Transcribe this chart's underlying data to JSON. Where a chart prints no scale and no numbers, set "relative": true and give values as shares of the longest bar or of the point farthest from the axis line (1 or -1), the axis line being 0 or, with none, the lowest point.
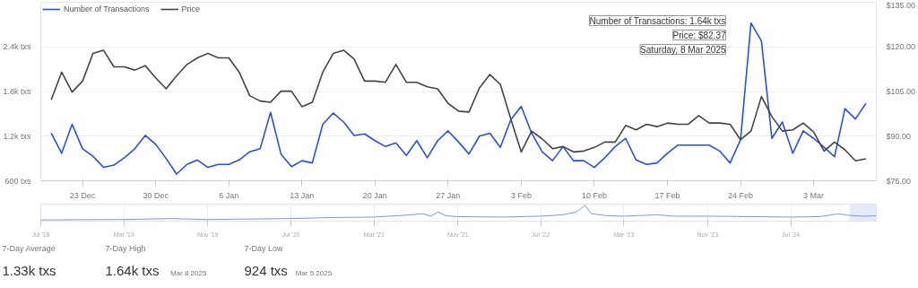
{
  "chart_data": [
    {
      "type": "line",
      "legend": "top left",
      "grid": "y",
      "marker": "none",
      "line_style": "solid",
      "x": [
        "2024-12-20",
        "2024-12-21",
        "2024-12-22",
        "2024-12-23",
        "2024-12-24",
        "2024-12-25",
        "2024-12-26",
        "2024-12-27",
        "2024-12-28",
        "2024-12-29",
        "2024-12-30",
        "2024-12-31",
        "2025-01-01",
        "2025-01-02",
        "2025-01-03",
        "2025-01-04",
        "2025-01-05",
        "2025-01-06",
        "2025-01-07",
        "2025-01-08",
        "2025-01-09",
        "2025-01-10",
        "2025-01-11",
        "2025-01-12",
        "2025-01-13",
        "2025-01-14",
        "2025-01-15",
        "2025-01-16",
        "2025-01-17",
        "2025-01-18",
        "2025-01-19",
        "2025-01-20",
        "2025-01-21",
        "2025-01-22",
        "2025-01-23",
        "2025-01-24",
        "2025-01-25",
        "2025-01-26",
        "2025-01-27",
        "2025-01-28",
        "2025-01-29",
        "2025-01-30",
        "2025-01-31",
        "2025-02-01",
        "2025-02-02",
        "2025-02-03",
        "2025-02-04",
        "2025-02-05",
        "2025-02-06",
        "2025-02-07",
        "2025-02-08",
        "2025-02-09",
        "2025-02-10",
        "2025-02-11",
        "2025-02-12",
        "2025-02-13",
        "2025-02-14",
        "2025-02-15",
        "2025-02-16",
        "2025-02-17",
        "2025-02-18",
        "2025-02-19",
        "2025-02-20",
        "2025-02-21",
        "2025-02-22",
        "2025-02-23",
        "2025-02-24",
        "2025-02-25",
        "2025-02-26",
        "2025-02-27",
        "2025-02-28",
        "2025-03-01",
        "2025-03-02",
        "2025-03-03",
        "2025-03-04",
        "2025-03-05",
        "2025-03-06",
        "2025-03-07",
        "2025-03-08"
      ],
      "series": [
        {
          "name": "Number of Transactions",
          "color": "#2a4fe0",
          "values": [
            1240,
            970,
            1360,
            1030,
            930,
            780,
            810,
            910,
            1030,
            1210,
            1090,
            900,
            690,
            820,
            880,
            780,
            820,
            820,
            880,
            990,
            1030,
            1520,
            960,
            790,
            870,
            840,
            1360,
            1510,
            1390,
            1210,
            1230,
            1140,
            1060,
            1110,
            940,
            1140,
            910,
            1140,
            1270,
            1120,
            960,
            1200,
            1240,
            1050,
            1420,
            1600,
            1240,
            990,
            870,
            1060,
            870,
            870,
            780,
            910,
            1060,
            1170,
            880,
            820,
            840,
            970,
            1080,
            1080,
            1080,
            1080,
            1000,
            840,
            1150,
            2720,
            2480,
            1170,
            1390,
            970,
            1270,
            1170,
            1050,
            924,
            1570,
            1430,
            1640
          ]
        },
        {
          "name": "Price",
          "color": "#444444",
          "axis": "y2",
          "values": [
            102.2,
            111.5,
            104.8,
            108.5,
            117.8,
            118.9,
            113.3,
            113.3,
            112.2,
            113.7,
            109.6,
            105.9,
            110.3,
            114.1,
            116.3,
            117.8,
            116.3,
            116.3,
            111.5,
            103.6,
            101.8,
            101.4,
            105.1,
            105.1,
            99.9,
            101.4,
            111.5,
            117.8,
            118.9,
            115.9,
            108.5,
            108.5,
            108.1,
            114.1,
            108.1,
            108.1,
            106.6,
            105.9,
            101.0,
            98.4,
            98.1,
            106.2,
            110.7,
            107.4,
            95.8,
            84.7,
            91.7,
            89.1,
            85.8,
            86.5,
            84.7,
            85.0,
            86.2,
            88.0,
            88.0,
            93.6,
            92.1,
            94.0,
            93.2,
            94.4,
            94.0,
            94.0,
            96.9,
            94.4,
            94.4,
            94.0,
            88.8,
            91.7,
            103.3,
            96.6,
            91.7,
            92.1,
            94.4,
            91.4,
            85.0,
            88.0,
            85.4,
            81.7,
            82.37
          ]
        }
      ],
      "xlim": [
        "2024-12-19",
        "2025-03-09"
      ],
      "xticks": [
        {
          "value": "2024-12-23",
          "label": "23 Dec"
        },
        {
          "value": "2024-12-30",
          "label": "30 Dec"
        },
        {
          "value": "2025-01-06",
          "label": "6 Jan"
        },
        {
          "value": "2025-01-13",
          "label": "13 Jan"
        },
        {
          "value": "2025-01-20",
          "label": "20 Jan"
        },
        {
          "value": "2025-01-27",
          "label": "27 Jan"
        },
        {
          "value": "2025-02-03",
          "label": "3 Feb"
        },
        {
          "value": "2025-02-10",
          "label": "10 Feb"
        },
        {
          "value": "2025-02-17",
          "label": "17 Feb"
        },
        {
          "value": "2025-02-24",
          "label": "24 Feb"
        },
        {
          "value": "2025-03-03",
          "label": "3 Mar"
        }
      ],
      "ylim": [
        600,
        3000
      ],
      "yticks": [
        {
          "value": 600,
          "label": "600 txs"
        },
        {
          "value": 1200,
          "label": "1.2k txs"
        },
        {
          "value": 1800,
          "label": "1.8k txs"
        },
        {
          "value": 2400,
          "label": "2.4k txs"
        },
        {
          "value": 3000,
          "label": null
        }
      ],
      "y2lim": [
        75,
        135
      ],
      "y2ticks": [
        {
          "value": 75,
          "label": "$75.00"
        },
        {
          "value": 90,
          "label": "$90.00"
        },
        {
          "value": 105,
          "label": "$105.00"
        },
        {
          "value": 120,
          "label": "$120.00"
        },
        {
          "value": 135,
          "label": "$135.00"
        }
      ],
      "annotations": [
        "Number of Transactions: 1.64k txs",
        "Price: $82.37",
        "Saturday, 8 Mar 2025"
      ]
    },
    {
      "type": "line",
      "relative": true,
      "grid": "x",
      "marker": "none",
      "x": [
        "2018-07-01",
        "2019-03-01",
        "2019-07-17",
        "2019-10-27",
        "2020-06-29",
        "2020-11-02",
        "2021-02-28",
        "2021-06-19",
        "2021-07-21",
        "2021-08-15",
        "2021-09-05",
        "2021-09-25",
        "2021-10-31",
        "2022-03-07",
        "2022-06-29",
        "2022-09-03",
        "2022-10-14",
        "2022-11-07",
        "2022-11-27",
        "2023-01-11",
        "2023-03-01",
        "2023-06-07",
        "2023-07-26",
        "2023-10-29",
        "2024-03-11",
        "2024-06-29",
        "2024-09-23",
        "2024-11-19",
        "2024-12-14",
        "2025-02-01",
        "2025-03-08"
      ],
      "series": [
        {
          "color": "#7d95e6",
          "values": [
            0.03,
            0.06,
            0.12,
            0.06,
            0.12,
            0.19,
            0.22,
            0.37,
            0.44,
            0.28,
            0.56,
            0.31,
            0.25,
            0.22,
            0.28,
            0.37,
            0.56,
            1,
            0.44,
            0.31,
            0.28,
            0.37,
            0.28,
            0.28,
            0.25,
            0.22,
            0.25,
            0.44,
            0.34,
            0.28,
            0.31
          ]
        }
      ],
      "xlim": [
        "2018-07-01",
        "2025-03-08"
      ],
      "xticks": [
        {
          "value": "2018-07-01",
          "label": "Jul '18"
        },
        {
          "value": "2019-03-01",
          "label": "Mar '19"
        },
        {
          "value": "2019-11-01",
          "label": "Nov '19"
        },
        {
          "value": "2020-07-01",
          "label": "Jul '20"
        },
        {
          "value": "2021-03-01",
          "label": "Mar '21"
        },
        {
          "value": "2021-11-01",
          "label": "Nov '21"
        },
        {
          "value": "2022-07-01",
          "label": "Jul '22"
        },
        {
          "value": "2023-03-01",
          "label": "Mar '23"
        },
        {
          "value": "2023-11-01",
          "label": "Nov '23"
        },
        {
          "value": "2024-07-01",
          "label": "Jul '24"
        }
      ],
      "bands": [
        {
          "axis": "x",
          "from": "2024-12-20",
          "to": "2025-03-08",
          "color": "#dce6fa"
        }
      ]
    },
    {
      "type": "other",
      "title": "7-Day Average",
      "annotations": [
        "1.33k txs"
      ]
    },
    {
      "type": "other",
      "title": "7-Day High",
      "annotations": [
        "1.64k txs",
        "Mar 8 2025"
      ]
    },
    {
      "type": "other",
      "title": "7-Day Low",
      "annotations": [
        "924 txs",
        "Mar 5 2025"
      ]
    }
  ]
}
